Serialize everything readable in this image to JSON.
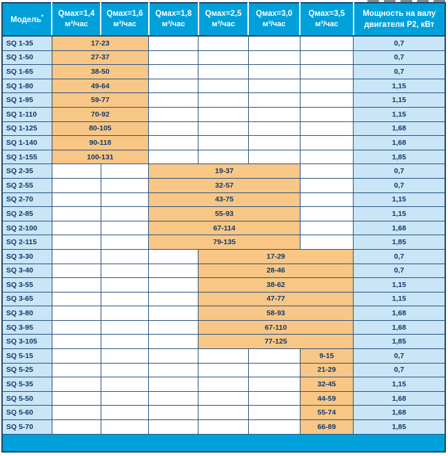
{
  "colors": {
    "header_bg": "#00A1DB",
    "light_blue_cell": "#C9E5F6",
    "highlight_orange": "#F8C685",
    "border_navy": "#1C4470",
    "text_navy": "#123A68",
    "header_text": "#FFFFFF"
  },
  "table": {
    "header": {
      "model_label": "Модель",
      "model_mark": "*",
      "q_columns": [
        {
          "label": "Qмах=1,4",
          "unit": "м³/час"
        },
        {
          "label": "Qмах=1,6",
          "unit": "м³/час"
        },
        {
          "label": "Qмах=1,8",
          "unit": "м³/час"
        },
        {
          "label": "Qмах=2,5",
          "unit": "м³/час"
        },
        {
          "label": "Qмах=3,0",
          "unit": "м³/час"
        },
        {
          "label": "Qмах=3,5",
          "unit": "м³/час"
        }
      ],
      "power_label": "Мощность на валу двигателя P2, кВт"
    },
    "groups": [
      {
        "name": "SQ 1",
        "span_start": 0,
        "span_len": 2,
        "rows": [
          {
            "model": "SQ 1-35",
            "range": "17-23",
            "power": "0,7"
          },
          {
            "model": "SQ 1-50",
            "range": "27-37",
            "power": "0,7"
          },
          {
            "model": "SQ 1-65",
            "range": "38-50",
            "power": "0,7"
          },
          {
            "model": "SQ 1-80",
            "range": "49-64",
            "power": "1,15"
          },
          {
            "model": "SQ 1-95",
            "range": "59-77",
            "power": "1,15"
          },
          {
            "model": "SQ 1-110",
            "range": "70-92",
            "power": "1,15"
          },
          {
            "model": "SQ 1-125",
            "range": "80-105",
            "power": "1,68"
          },
          {
            "model": "SQ 1-140",
            "range": "90-118",
            "power": "1,68"
          },
          {
            "model": "SQ 1-155",
            "range": "100-131",
            "power": "1,85"
          }
        ]
      },
      {
        "name": "SQ 2",
        "span_start": 2,
        "span_len": 3,
        "rows": [
          {
            "model": "SQ 2-35",
            "range": "19-37",
            "power": "0,7"
          },
          {
            "model": "SQ 2-55",
            "range": "32-57",
            "power": "0,7"
          },
          {
            "model": "SQ 2-70",
            "range": "43-75",
            "power": "1,15"
          },
          {
            "model": "SQ 2-85",
            "range": "55-93",
            "power": "1,15"
          },
          {
            "model": "SQ 2-100",
            "range": "67-114",
            "power": "1,68"
          },
          {
            "model": "SQ 2-115",
            "range": "79-135",
            "power": "1,85"
          }
        ]
      },
      {
        "name": "SQ 3",
        "span_start": 3,
        "span_len": 3,
        "rows": [
          {
            "model": "SQ 3-30",
            "range": "17-29",
            "power": "0,7"
          },
          {
            "model": "SQ 3-40",
            "range": "28-46",
            "power": "0,7"
          },
          {
            "model": "SQ 3-55",
            "range": "38-62",
            "power": "1,15"
          },
          {
            "model": "SQ 3-65",
            "range": "47-77",
            "power": "1,15"
          },
          {
            "model": "SQ 3-80",
            "range": "58-93",
            "power": "1,68"
          },
          {
            "model": "SQ 3-95",
            "range": "67-110",
            "power": "1,68"
          },
          {
            "model": "SQ 3-105",
            "range": "77-125",
            "power": "1,85"
          }
        ]
      },
      {
        "name": "SQ 5",
        "span_start": 5,
        "span_len": 1,
        "rows": [
          {
            "model": "SQ 5-15",
            "range": "9-15",
            "power": "0,7"
          },
          {
            "model": "SQ 5-25",
            "range": "21-29",
            "power": "0,7"
          },
          {
            "model": "SQ 5-35",
            "range": "32-45",
            "power": "1,15"
          },
          {
            "model": "SQ 5-50",
            "range": "44-59",
            "power": "1,68"
          },
          {
            "model": "SQ 5-60",
            "range": "55-74",
            "power": "1,68"
          },
          {
            "model": "SQ 5-70",
            "range": "66-89",
            "power": "1,85"
          }
        ]
      }
    ]
  }
}
